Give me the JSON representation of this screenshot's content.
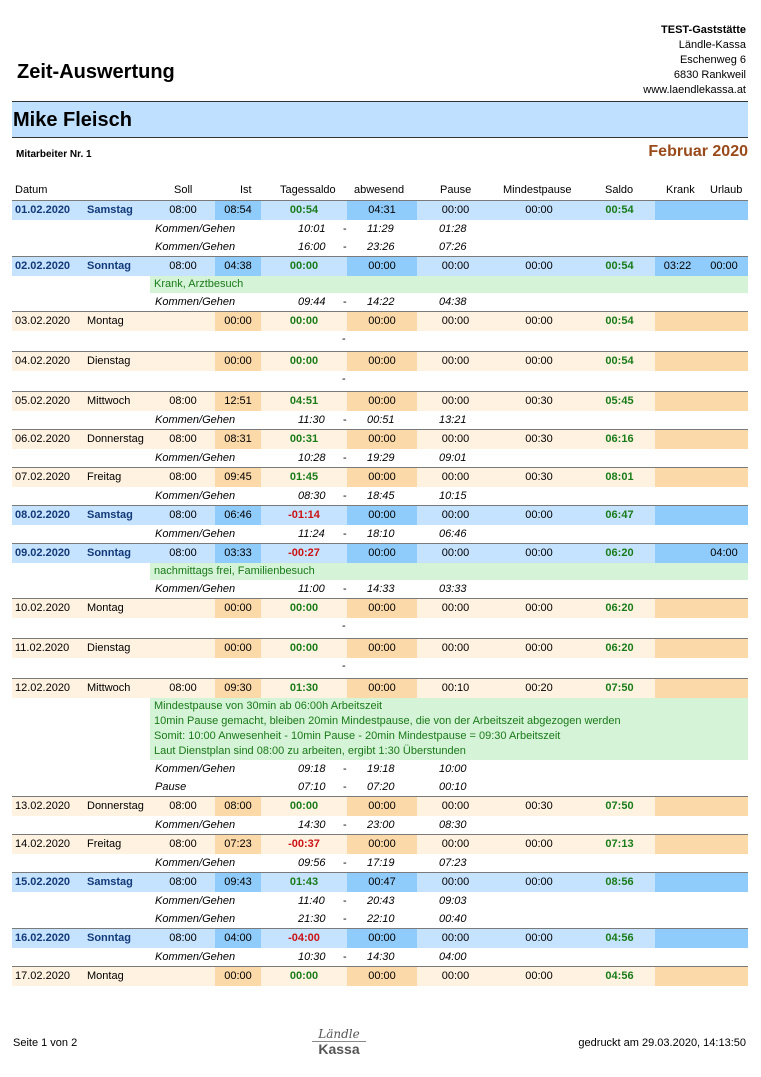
{
  "title": "Zeit-Auswertung",
  "company": {
    "name": "TEST-Gaststätte",
    "line1": "Ländle-Kassa",
    "line2": "Eschenweg 6",
    "line3": "6830 Rankweil",
    "line4": "www.laendlekassa.at"
  },
  "employee": {
    "name": "Mike Fleisch",
    "number": "Mitarbeiter Nr. 1",
    "period": "Februar 2020"
  },
  "columns": [
    "Datum",
    "Soll",
    "Ist",
    "Tagessaldo",
    "abwesend",
    "Pause",
    "Mindestpause",
    "Saldo",
    "Krank",
    "Urlaub"
  ],
  "days": [
    {
      "date": "01.02.2020",
      "weekday": "Samstag",
      "weekend": true,
      "soll": "08:00",
      "ist": "08:54",
      "tagessaldo": "00:54",
      "tagessaldo_neg": false,
      "abwesend": "04:31",
      "pause": "00:00",
      "mindestpause": "00:00",
      "saldo": "00:54",
      "krank": "",
      "urlaub": "",
      "notes": [],
      "entries": [
        {
          "label": "Kommen/Gehen",
          "from": "10:01",
          "to": "11:29",
          "dur": "01:28"
        },
        {
          "label": "Kommen/Gehen",
          "from": "16:00",
          "to": "23:26",
          "dur": "07:26"
        }
      ]
    },
    {
      "date": "02.02.2020",
      "weekday": "Sonntag",
      "weekend": true,
      "soll": "08:00",
      "ist": "04:38",
      "tagessaldo": "00:00",
      "tagessaldo_neg": false,
      "abwesend": "00:00",
      "pause": "00:00",
      "mindestpause": "00:00",
      "saldo": "00:54",
      "krank": "03:22",
      "urlaub": "00:00",
      "notes": [
        "Krank, Arztbesuch"
      ],
      "entries": [
        {
          "label": "Kommen/Gehen",
          "from": "09:44",
          "to": "14:22",
          "dur": "04:38"
        }
      ]
    },
    {
      "date": "03.02.2020",
      "weekday": "Montag",
      "weekend": false,
      "soll": "",
      "ist": "00:00",
      "tagessaldo": "00:00",
      "tagessaldo_neg": false,
      "abwesend": "00:00",
      "pause": "00:00",
      "mindestpause": "00:00",
      "saldo": "00:54",
      "krank": "",
      "urlaub": "",
      "notes": [],
      "entries": []
    },
    {
      "date": "04.02.2020",
      "weekday": "Dienstag",
      "weekend": false,
      "soll": "",
      "ist": "00:00",
      "tagessaldo": "00:00",
      "tagessaldo_neg": false,
      "abwesend": "00:00",
      "pause": "00:00",
      "mindestpause": "00:00",
      "saldo": "00:54",
      "krank": "",
      "urlaub": "",
      "notes": [],
      "entries": []
    },
    {
      "date": "05.02.2020",
      "weekday": "Mittwoch",
      "weekend": false,
      "soll": "08:00",
      "ist": "12:51",
      "tagessaldo": "04:51",
      "tagessaldo_neg": false,
      "abwesend": "00:00",
      "pause": "00:00",
      "mindestpause": "00:30",
      "saldo": "05:45",
      "krank": "",
      "urlaub": "",
      "notes": [],
      "entries": [
        {
          "label": "Kommen/Gehen",
          "from": "11:30",
          "to": "00:51",
          "dur": "13:21"
        }
      ]
    },
    {
      "date": "06.02.2020",
      "weekday": "Donnerstag",
      "weekend": false,
      "soll": "08:00",
      "ist": "08:31",
      "tagessaldo": "00:31",
      "tagessaldo_neg": false,
      "abwesend": "00:00",
      "pause": "00:00",
      "mindestpause": "00:30",
      "saldo": "06:16",
      "krank": "",
      "urlaub": "",
      "notes": [],
      "entries": [
        {
          "label": "Kommen/Gehen",
          "from": "10:28",
          "to": "19:29",
          "dur": "09:01"
        }
      ]
    },
    {
      "date": "07.02.2020",
      "weekday": "Freitag",
      "weekend": false,
      "soll": "08:00",
      "ist": "09:45",
      "tagessaldo": "01:45",
      "tagessaldo_neg": false,
      "abwesend": "00:00",
      "pause": "00:00",
      "mindestpause": "00:30",
      "saldo": "08:01",
      "krank": "",
      "urlaub": "",
      "notes": [],
      "entries": [
        {
          "label": "Kommen/Gehen",
          "from": "08:30",
          "to": "18:45",
          "dur": "10:15"
        }
      ]
    },
    {
      "date": "08.02.2020",
      "weekday": "Samstag",
      "weekend": true,
      "soll": "08:00",
      "ist": "06:46",
      "tagessaldo": "-01:14",
      "tagessaldo_neg": true,
      "abwesend": "00:00",
      "pause": "00:00",
      "mindestpause": "00:00",
      "saldo": "06:47",
      "krank": "",
      "urlaub": "",
      "notes": [],
      "entries": [
        {
          "label": "Kommen/Gehen",
          "from": "11:24",
          "to": "18:10",
          "dur": "06:46"
        }
      ]
    },
    {
      "date": "09.02.2020",
      "weekday": "Sonntag",
      "weekend": true,
      "soll": "08:00",
      "ist": "03:33",
      "tagessaldo": "-00:27",
      "tagessaldo_neg": true,
      "abwesend": "00:00",
      "pause": "00:00",
      "mindestpause": "00:00",
      "saldo": "06:20",
      "krank": "",
      "urlaub": "04:00",
      "notes": [
        "nachmittags frei, Familienbesuch"
      ],
      "entries": [
        {
          "label": "Kommen/Gehen",
          "from": "11:00",
          "to": "14:33",
          "dur": "03:33"
        }
      ]
    },
    {
      "date": "10.02.2020",
      "weekday": "Montag",
      "weekend": false,
      "soll": "",
      "ist": "00:00",
      "tagessaldo": "00:00",
      "tagessaldo_neg": false,
      "abwesend": "00:00",
      "pause": "00:00",
      "mindestpause": "00:00",
      "saldo": "06:20",
      "krank": "",
      "urlaub": "",
      "notes": [],
      "entries": []
    },
    {
      "date": "11.02.2020",
      "weekday": "Dienstag",
      "weekend": false,
      "soll": "",
      "ist": "00:00",
      "tagessaldo": "00:00",
      "tagessaldo_neg": false,
      "abwesend": "00:00",
      "pause": "00:00",
      "mindestpause": "00:00",
      "saldo": "06:20",
      "krank": "",
      "urlaub": "",
      "notes": [],
      "entries": []
    },
    {
      "date": "12.02.2020",
      "weekday": "Mittwoch",
      "weekend": false,
      "soll": "08:00",
      "ist": "09:30",
      "tagessaldo": "01:30",
      "tagessaldo_neg": false,
      "abwesend": "00:00",
      "pause": "00:10",
      "mindestpause": "00:20",
      "saldo": "07:50",
      "krank": "",
      "urlaub": "",
      "notes": [
        "Mindestpause von 30min ab 06:00h Arbeitszeit",
        "10min Pause gemacht, bleiben 20min Mindestpause, die von der Arbeitszeit abgezogen werden",
        "Somit: 10:00 Anwesenheit - 10min Pause - 20min Mindestpause = 09:30 Arbeitszeit",
        "Laut Dienstplan sind 08:00 zu arbeiten, ergibt 1:30 Überstunden"
      ],
      "entries": [
        {
          "label": "Kommen/Gehen",
          "from": "09:18",
          "to": "19:18",
          "dur": "10:00"
        },
        {
          "label": "Pause",
          "from": "07:10",
          "to": "07:20",
          "dur": "00:10"
        }
      ]
    },
    {
      "date": "13.02.2020",
      "weekday": "Donnerstag",
      "weekend": false,
      "soll": "08:00",
      "ist": "08:00",
      "tagessaldo": "00:00",
      "tagessaldo_neg": false,
      "abwesend": "00:00",
      "pause": "00:00",
      "mindestpause": "00:30",
      "saldo": "07:50",
      "krank": "",
      "urlaub": "",
      "notes": [],
      "entries": [
        {
          "label": "Kommen/Gehen",
          "from": "14:30",
          "to": "23:00",
          "dur": "08:30"
        }
      ]
    },
    {
      "date": "14.02.2020",
      "weekday": "Freitag",
      "weekend": false,
      "soll": "08:00",
      "ist": "07:23",
      "tagessaldo": "-00:37",
      "tagessaldo_neg": true,
      "abwesend": "00:00",
      "pause": "00:00",
      "mindestpause": "00:00",
      "saldo": "07:13",
      "krank": "",
      "urlaub": "",
      "notes": [],
      "entries": [
        {
          "label": "Kommen/Gehen",
          "from": "09:56",
          "to": "17:19",
          "dur": "07:23"
        }
      ]
    },
    {
      "date": "15.02.2020",
      "weekday": "Samstag",
      "weekend": true,
      "soll": "08:00",
      "ist": "09:43",
      "tagessaldo": "01:43",
      "tagessaldo_neg": false,
      "abwesend": "00:47",
      "pause": "00:00",
      "mindestpause": "00:00",
      "saldo": "08:56",
      "krank": "",
      "urlaub": "",
      "notes": [],
      "entries": [
        {
          "label": "Kommen/Gehen",
          "from": "11:40",
          "to": "20:43",
          "dur": "09:03"
        },
        {
          "label": "Kommen/Gehen",
          "from": "21:30",
          "to": "22:10",
          "dur": "00:40"
        }
      ]
    },
    {
      "date": "16.02.2020",
      "weekday": "Sonntag",
      "weekend": true,
      "soll": "08:00",
      "ist": "04:00",
      "tagessaldo": "-04:00",
      "tagessaldo_neg": true,
      "abwesend": "00:00",
      "pause": "00:00",
      "mindestpause": "00:00",
      "saldo": "04:56",
      "krank": "",
      "urlaub": "",
      "notes": [],
      "entries": [
        {
          "label": "Kommen/Gehen",
          "from": "10:30",
          "to": "14:30",
          "dur": "04:00"
        }
      ]
    },
    {
      "date": "17.02.2020",
      "weekday": "Montag",
      "weekend": false,
      "soll": "",
      "ist": "00:00",
      "tagessaldo": "00:00",
      "tagessaldo_neg": false,
      "abwesend": "00:00",
      "pause": "00:00",
      "mindestpause": "00:00",
      "saldo": "04:56",
      "krank": "",
      "urlaub": "",
      "notes": [],
      "entries": []
    }
  ],
  "footer": {
    "page": "Seite 1 von 2",
    "printed": "gedruckt am 29.03.2020, 14:13:50",
    "logo_top": "Ländle",
    "logo_bottom": "Kassa"
  }
}
